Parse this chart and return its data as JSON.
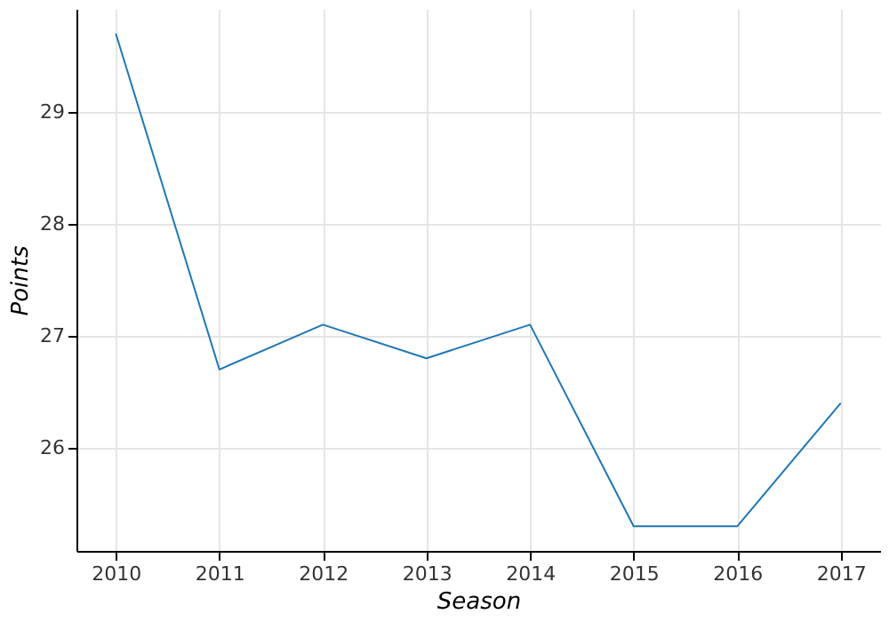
{
  "chart_data": {
    "type": "line",
    "xlabel": "Season",
    "ylabel": "Points",
    "x": [
      2010,
      2011,
      2012,
      2013,
      2014,
      2015,
      2016,
      2017
    ],
    "series": [
      {
        "color": "#1f77b4",
        "values": [
          29.7,
          26.7,
          27.1,
          26.8,
          27.1,
          25.3,
          25.3,
          26.4
        ]
      }
    ],
    "xlim": [
      2009.62,
      2017.38
    ],
    "ylim": [
      25.08,
      29.92
    ],
    "xticks": [
      2010,
      2011,
      2012,
      2013,
      2014,
      2015,
      2016,
      2017
    ],
    "yticks": [
      26,
      27,
      28,
      29
    ],
    "grid": true,
    "marker": "none",
    "line_style": "solid"
  }
}
